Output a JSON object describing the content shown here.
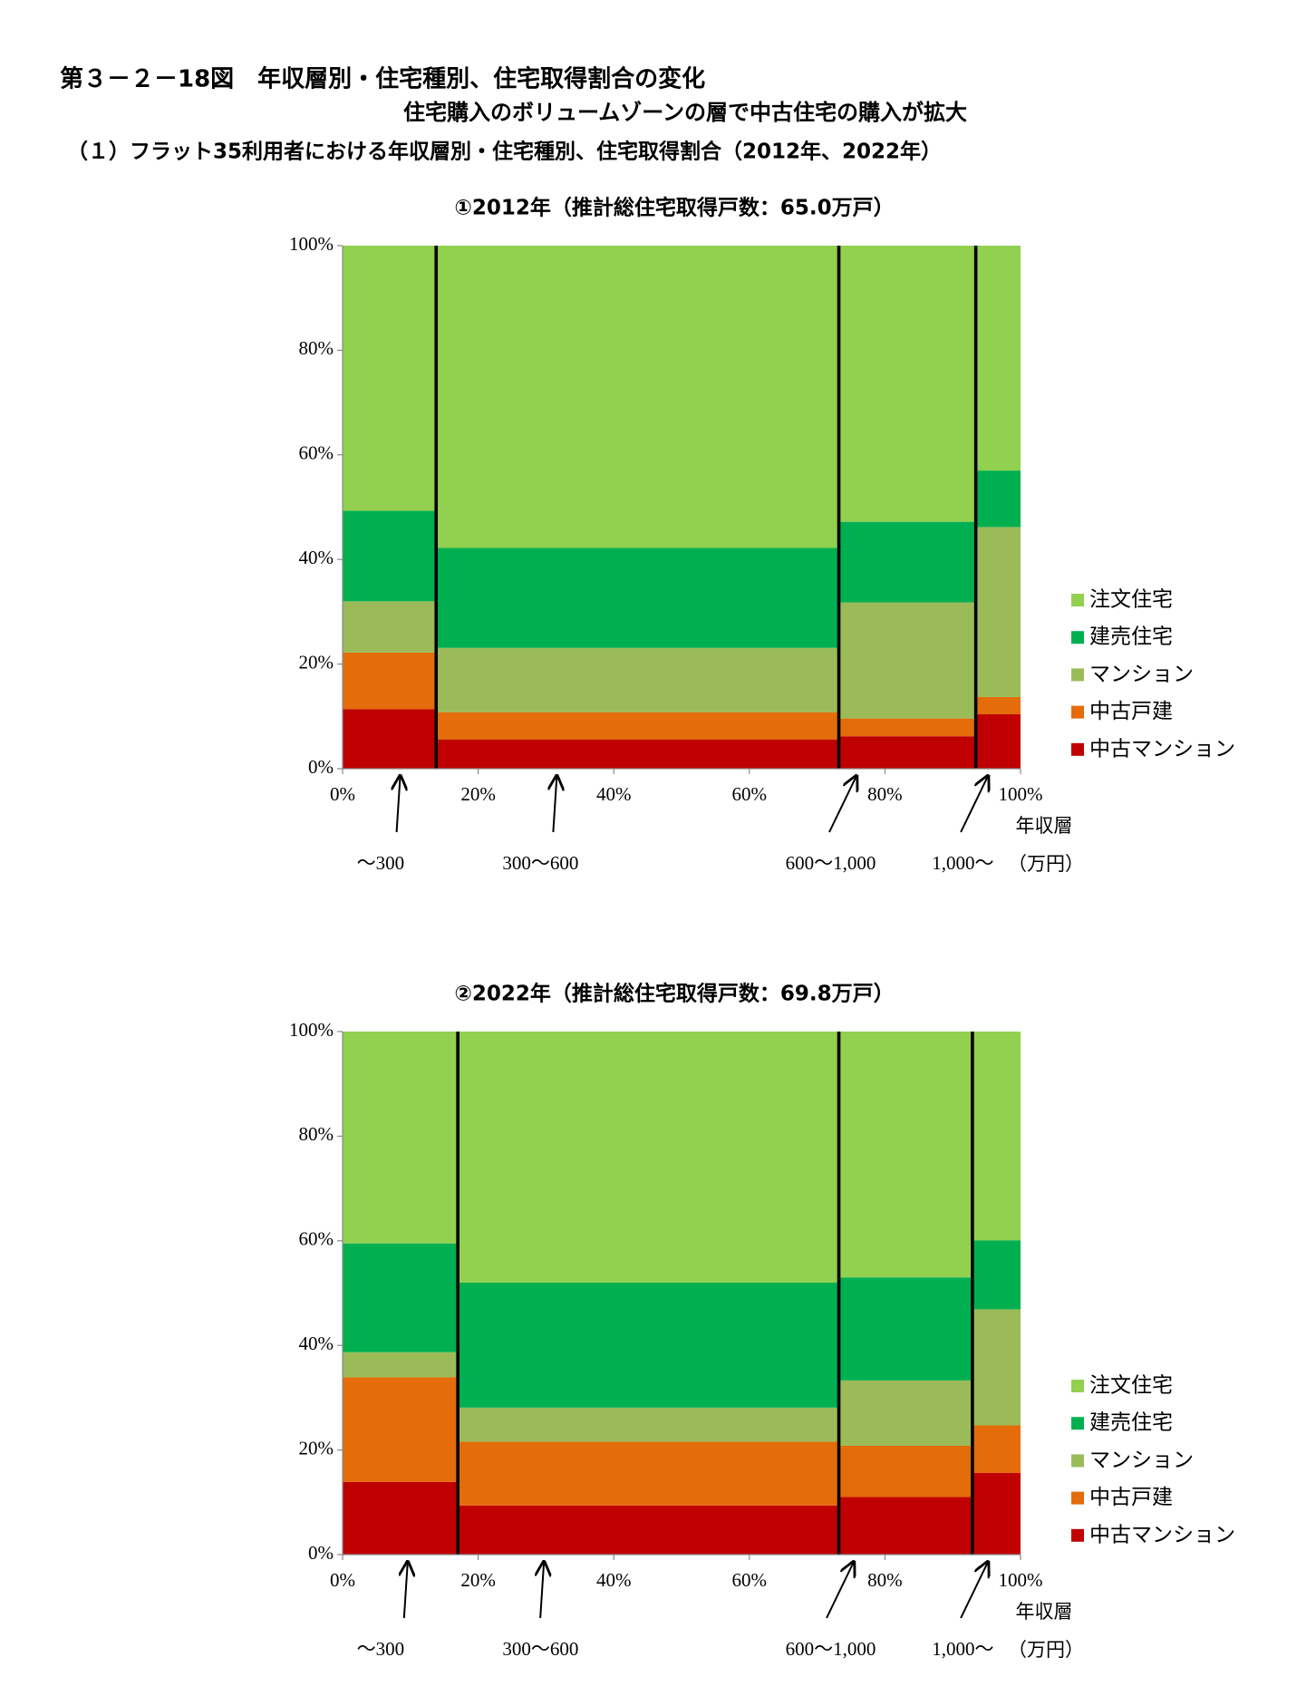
{
  "header": {
    "title": "第３－２－18図　年収層別・住宅種別、住宅取得割合の変化",
    "subtitle": "住宅購入のボリュームゾーンの層で中古住宅の購入が拡大",
    "section": "（１）フラット35利用者における年収層別・住宅種別、住宅取得割合（2012年、2022年）"
  },
  "chart_data": [
    {
      "type": "mosaic",
      "title": "①2012年（推計総住宅取得戸数：65.0万戸）",
      "categories": [
        "～300",
        "300～600",
        "600～1,000",
        "1,000～"
      ],
      "widths": [
        13.8,
        59.4,
        20.2,
        6.6
      ],
      "series": [
        {
          "name": "中古マンション",
          "color": "#c00000",
          "values": [
            11.4,
            5.6,
            6.2,
            10.4
          ]
        },
        {
          "name": "中古戸建",
          "color": "#e46c0a",
          "values": [
            10.8,
            5.2,
            3.4,
            3.3
          ]
        },
        {
          "name": "マンション",
          "color": "#9bbb59",
          "values": [
            9.8,
            12.3,
            22.2,
            32.5
          ]
        },
        {
          "name": "建売住宅",
          "color": "#00b050",
          "values": [
            17.3,
            19.1,
            15.4,
            10.8
          ]
        },
        {
          "name": "注文住宅",
          "color": "#92d050",
          "values": [
            50.7,
            57.8,
            52.8,
            43.0
          ]
        }
      ],
      "xlabel": "年収層",
      "xunit": "（万円）",
      "xlim": [
        0,
        100
      ],
      "xticks": [
        {
          "value": 0,
          "label": "0%"
        },
        {
          "value": 20,
          "label": "20%"
        },
        {
          "value": 40,
          "label": "40%"
        },
        {
          "value": 60,
          "label": "60%"
        },
        {
          "value": 80,
          "label": "80%"
        },
        {
          "value": 100,
          "label": "100%"
        }
      ],
      "ylim": [
        0,
        100
      ],
      "yticks": [
        {
          "value": 0,
          "label": "0%"
        },
        {
          "value": 20,
          "label": "20%"
        },
        {
          "value": 40,
          "label": "40%"
        },
        {
          "value": 60,
          "label": "60%"
        },
        {
          "value": 80,
          "label": "80%"
        },
        {
          "value": 100,
          "label": "100%"
        }
      ],
      "legend": "right"
    },
    {
      "type": "mosaic",
      "title": "②2022年（推計総住宅取得戸数：69.8万戸）",
      "categories": [
        "～300",
        "300～600",
        "600～1,000",
        "1,000～"
      ],
      "widths": [
        17.0,
        56.2,
        19.7,
        7.1
      ],
      "series": [
        {
          "name": "中古マンション",
          "color": "#c00000",
          "values": [
            13.9,
            9.4,
            11.0,
            15.6
          ]
        },
        {
          "name": "中古戸建",
          "color": "#e46c0a",
          "values": [
            20.0,
            12.2,
            9.8,
            9.1
          ]
        },
        {
          "name": "マンション",
          "color": "#9bbb59",
          "values": [
            4.8,
            6.5,
            12.5,
            22.2
          ]
        },
        {
          "name": "建売住宅",
          "color": "#00b050",
          "values": [
            20.8,
            23.9,
            19.7,
            13.2
          ]
        },
        {
          "name": "注文住宅",
          "color": "#92d050",
          "values": [
            40.5,
            48.0,
            47.0,
            39.9
          ]
        }
      ],
      "xlabel": "年収層",
      "xunit": "（万円）",
      "xlim": [
        0,
        100
      ],
      "xticks": [
        {
          "value": 0,
          "label": "0%"
        },
        {
          "value": 20,
          "label": "20%"
        },
        {
          "value": 40,
          "label": "40%"
        },
        {
          "value": 60,
          "label": "60%"
        },
        {
          "value": 80,
          "label": "80%"
        },
        {
          "value": 100,
          "label": "100%"
        }
      ],
      "ylim": [
        0,
        100
      ],
      "yticks": [
        {
          "value": 0,
          "label": "0%"
        },
        {
          "value": 20,
          "label": "20%"
        },
        {
          "value": 40,
          "label": "40%"
        },
        {
          "value": 60,
          "label": "60%"
        },
        {
          "value": 80,
          "label": "80%"
        },
        {
          "value": 100,
          "label": "100%"
        }
      ],
      "legend": "right"
    }
  ]
}
